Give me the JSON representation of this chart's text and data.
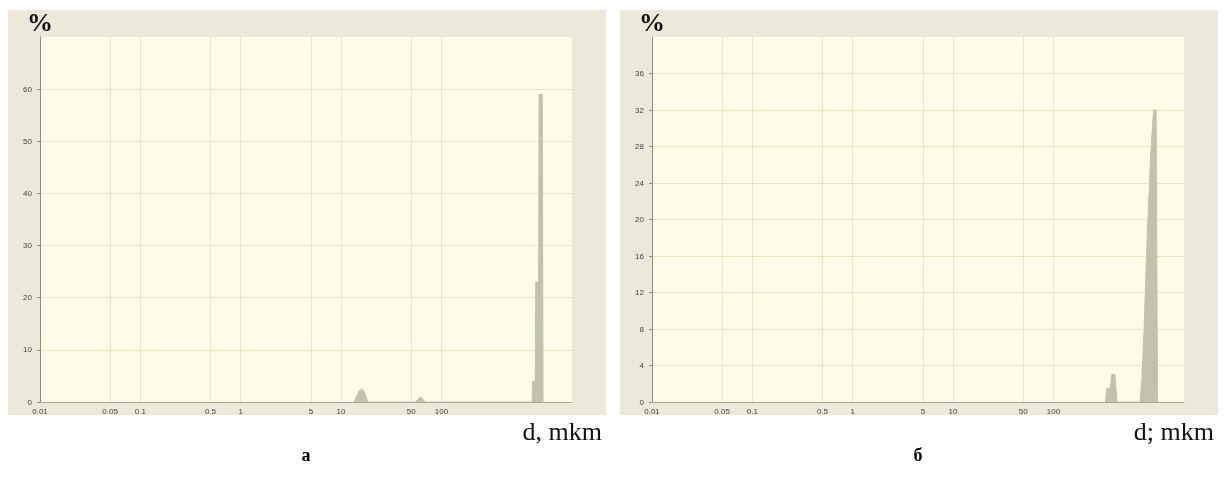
{
  "chart_data": [
    {
      "type": "area",
      "title": "а",
      "xlabel": "d, mkm",
      "ylabel": "%",
      "color": "#c3c2ae",
      "x": [
        13.5,
        15,
        16,
        17,
        18.5,
        55,
        62,
        69,
        800,
        810,
        860,
        870,
        930,
        940,
        1010,
        1030
      ],
      "values": [
        0,
        2,
        2.5,
        2,
        0,
        0,
        1,
        0,
        0,
        4,
        4,
        23,
        23,
        59,
        59,
        0
      ],
      "xlim": [
        0.01,
        2000
      ],
      "xticks": [
        0.01,
        0.05,
        0.1,
        0.5,
        1,
        5,
        10,
        50,
        100
      ],
      "ylim": [
        0,
        70
      ],
      "yticks": [
        0,
        10,
        20,
        30,
        40,
        50,
        60
      ],
      "log": "x",
      "grid": true
    },
    {
      "type": "area",
      "title": "б",
      "xlabel": "d; mkm",
      "ylabel": "%",
      "color": "#c3c2ae",
      "x": [
        330,
        340,
        370,
        380,
        410,
        430,
        730,
        760,
        800,
        865,
        935,
        995,
        1055,
        1090
      ],
      "values": [
        0,
        1.5,
        1.5,
        3,
        3,
        0,
        0,
        2.4,
        8,
        19,
        27.5,
        32,
        32,
        0
      ],
      "xlim": [
        0.01,
        2000
      ],
      "xticks": [
        0.01,
        0.05,
        0.1,
        0.5,
        1,
        5,
        10,
        50,
        100
      ],
      "ylim": [
        0,
        40
      ],
      "yticks": [
        0,
        4,
        8,
        12,
        16,
        20,
        24,
        28,
        32,
        36
      ],
      "log": "x",
      "grid": true
    }
  ]
}
